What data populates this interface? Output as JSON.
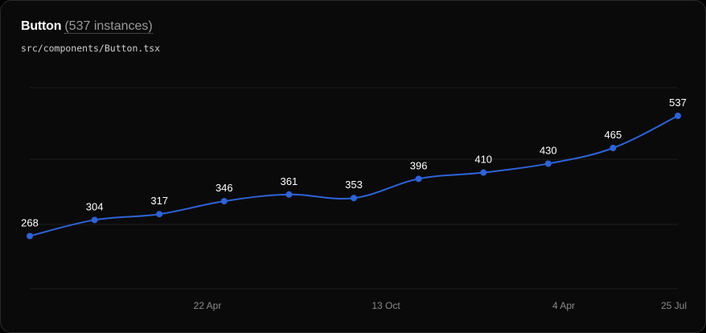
{
  "header": {
    "title": "Button",
    "count_label": "(537 instances)",
    "file_path": "src/components/Button.tsx"
  },
  "chart_data": {
    "type": "line",
    "x_tick_labels": [
      "22 Apr",
      "13 Oct",
      "4 Apr",
      "25 Jul"
    ],
    "series": [
      {
        "values": [
          268,
          304,
          317,
          346,
          361,
          353,
          396,
          410,
          430,
          465,
          537
        ],
        "color": "#2f63d6"
      }
    ],
    "ylim": [
      150,
      600
    ],
    "grid": "horizontal",
    "data_labels": true
  }
}
